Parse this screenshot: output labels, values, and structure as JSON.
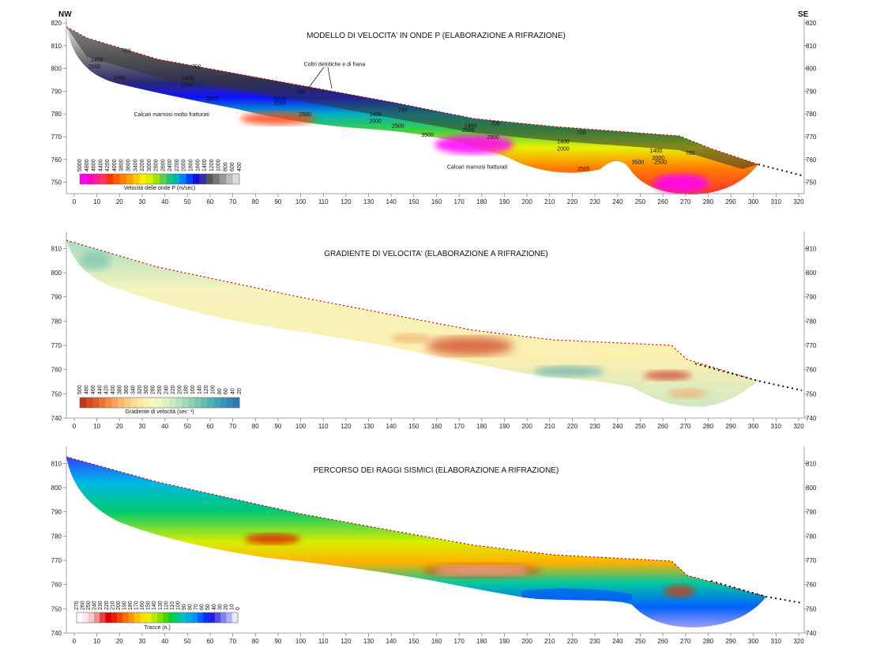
{
  "page": {
    "corner_left": "NW",
    "corner_right": "SE"
  },
  "chart_data": [
    {
      "type": "heatmap",
      "title": "MODELLO DI VELOCITA' IN ONDE P (ELABORAZIONE A RIFRAZIONE)",
      "xlim": [
        0,
        320
      ],
      "ylim": [
        745,
        820
      ],
      "x_ticks": [
        0,
        10,
        20,
        30,
        40,
        50,
        60,
        70,
        80,
        90,
        100,
        110,
        120,
        130,
        140,
        150,
        160,
        170,
        180,
        190,
        200,
        210,
        220,
        230,
        240,
        250,
        260,
        270,
        280,
        290,
        300,
        310,
        320
      ],
      "y_ticks": [
        750,
        760,
        770,
        780,
        790,
        800,
        810,
        820
      ],
      "legend": {
        "label": "Velocità delle onde P (m/sec)",
        "values": [
          "5000",
          "4800",
          "4600",
          "4400",
          "4200",
          "4000",
          "3800",
          "3600",
          "3400",
          "3200",
          "3000",
          "2800",
          "2600",
          "2400",
          "2200",
          "2000",
          "1800",
          "1600",
          "1400",
          "1200",
          "1000",
          "800",
          "600",
          "400"
        ],
        "colors": [
          "#ff00ff",
          "#ff00cc",
          "#ff1a99",
          "#ff3366",
          "#ff3300",
          "#ff5a00",
          "#ff8000",
          "#ffa000",
          "#ffc800",
          "#ffee00",
          "#d8f000",
          "#a8e000",
          "#60d040",
          "#20c080",
          "#00b0c0",
          "#0080ff",
          "#0040ff",
          "#1010d0",
          "#3030a0",
          "#555555",
          "#777777",
          "#999999",
          "#bbbbbb",
          "#dddddd"
        ]
      },
      "annotations": [
        {
          "text": "Coltri detritiche e di frana",
          "x": 115,
          "y": 801
        },
        {
          "text": "Calcari marnosi molto fratturati",
          "x": 43,
          "y": 779
        },
        {
          "text": "Calcari marnosi fratturati",
          "x": 178,
          "y": 756
        }
      ],
      "contour_labels": [
        {
          "text": "700",
          "x": 23,
          "y": 807
        },
        {
          "text": "1400",
          "x": 10,
          "y": 803
        },
        {
          "text": "2000",
          "x": 9,
          "y": 800
        },
        {
          "text": "2500",
          "x": 20,
          "y": 795
        },
        {
          "text": "700",
          "x": 54,
          "y": 800
        },
        {
          "text": "1400",
          "x": 50,
          "y": 795
        },
        {
          "text": "2000",
          "x": 50,
          "y": 792
        },
        {
          "text": "2500",
          "x": 61,
          "y": 786
        },
        {
          "text": "700",
          "x": 100,
          "y": 789
        },
        {
          "text": "1400",
          "x": 91,
          "y": 786
        },
        {
          "text": "2000",
          "x": 91,
          "y": 784
        },
        {
          "text": "2500",
          "x": 102,
          "y": 779
        },
        {
          "text": "700",
          "x": 145,
          "y": 781
        },
        {
          "text": "1400",
          "x": 133,
          "y": 779
        },
        {
          "text": "2000",
          "x": 133,
          "y": 776
        },
        {
          "text": "2500",
          "x": 143,
          "y": 774
        },
        {
          "text": "3500",
          "x": 156,
          "y": 770
        },
        {
          "text": "700",
          "x": 186,
          "y": 775
        },
        {
          "text": "1400",
          "x": 175,
          "y": 774
        },
        {
          "text": "2000",
          "x": 174,
          "y": 772
        },
        {
          "text": "2500",
          "x": 185,
          "y": 769
        },
        {
          "text": "700",
          "x": 224,
          "y": 771
        },
        {
          "text": "1400",
          "x": 216,
          "y": 767
        },
        {
          "text": "2000",
          "x": 216,
          "y": 764
        },
        {
          "text": "2500",
          "x": 225,
          "y": 755
        },
        {
          "text": "3500",
          "x": 249,
          "y": 758
        },
        {
          "text": "1400",
          "x": 257,
          "y": 763
        },
        {
          "text": "2000",
          "x": 258,
          "y": 760
        },
        {
          "text": "2500",
          "x": 259,
          "y": 758
        },
        {
          "text": "700",
          "x": 272,
          "y": 762
        }
      ]
    },
    {
      "type": "heatmap",
      "title": "GRADIENTE DI VELOCITA' (ELABORAZIONE A RIFRAZIONE)",
      "xlim": [
        0,
        320
      ],
      "ylim": [
        740,
        815
      ],
      "x_ticks": [
        0,
        10,
        20,
        30,
        40,
        50,
        60,
        70,
        80,
        90,
        100,
        110,
        120,
        130,
        140,
        150,
        160,
        170,
        180,
        190,
        200,
        210,
        220,
        230,
        240,
        250,
        260,
        270,
        280,
        290,
        300,
        310,
        320
      ],
      "y_ticks": [
        740,
        750,
        760,
        770,
        780,
        790,
        800,
        810
      ],
      "legend": {
        "label": "Gradiente di velocità (sec⁻¹)",
        "values": [
          "500",
          "480",
          "460",
          "440",
          "420",
          "400",
          "380",
          "360",
          "340",
          "320",
          "300",
          "280",
          "260",
          "240",
          "220",
          "200",
          "180",
          "160",
          "140",
          "120",
          "100",
          "80",
          "60",
          "40",
          "20"
        ],
        "colors": [
          "#c8351e",
          "#d64a26",
          "#e05a2c",
          "#ea7438",
          "#f08c45",
          "#f5a55a",
          "#f7bb70",
          "#f9cd84",
          "#fadc95",
          "#fce8a4",
          "#fdf1b2",
          "#f8f6be",
          "#eef5c2",
          "#dff0c2",
          "#cde9c0",
          "#b9e1bc",
          "#a3d8b7",
          "#8ecfb3",
          "#7ac5b0",
          "#66bbb0",
          "#53b0b2",
          "#43a3b4",
          "#3995b5",
          "#3387b5",
          "#2f79b3"
        ]
      }
    },
    {
      "type": "heatmap",
      "title": "PERCORSO DEI RAGGI SISMICI (ELABORAZIONE A RIFRAZIONE)",
      "xlim": [
        0,
        320
      ],
      "ylim": [
        740,
        815
      ],
      "x_ticks": [
        0,
        10,
        20,
        30,
        40,
        50,
        60,
        70,
        80,
        90,
        100,
        110,
        120,
        130,
        140,
        150,
        160,
        170,
        180,
        190,
        200,
        210,
        220,
        230,
        240,
        250,
        260,
        270,
        280,
        290,
        300,
        310,
        320
      ],
      "y_ticks": [
        740,
        750,
        760,
        770,
        780,
        790,
        800,
        810
      ],
      "legend": {
        "label": "Tracce (n.)",
        "values": [
          "270",
          "260",
          "250",
          "240",
          "230",
          "220",
          "210",
          "200",
          "190",
          "180",
          "170",
          "160",
          "150",
          "140",
          "130",
          "120",
          "110",
          "100",
          "90",
          "80",
          "70",
          "60",
          "50",
          "40",
          "30",
          "20",
          "10",
          "0"
        ],
        "colors": [
          "#ffffff",
          "#fbe8e8",
          "#f8c8c8",
          "#f29090",
          "#e84040",
          "#e00000",
          "#e82000",
          "#f04800",
          "#f87000",
          "#ff9800",
          "#ffc000",
          "#ffe000",
          "#e8f000",
          "#b8e800",
          "#80e000",
          "#40d800",
          "#00d040",
          "#00c880",
          "#00c0c0",
          "#00a8e0",
          "#0090ff",
          "#0060ff",
          "#0030ff",
          "#2020e0",
          "#5050e8",
          "#8080f0",
          "#b0b0f8",
          "#e8e8ff"
        ]
      }
    }
  ]
}
